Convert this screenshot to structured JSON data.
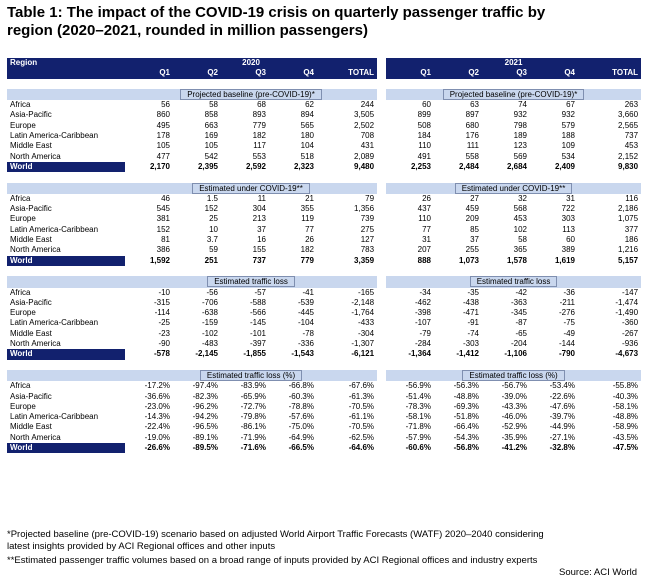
{
  "title_line1": "Table 1: The impact of the COVID-19 crisis on quarterly passenger traffic by",
  "title_line2": "region (2020–2021, rounded in million passengers)",
  "header": {
    "region_label": "Region",
    "year_left": "2020",
    "year_right": "2021",
    "columns": [
      "Q1",
      "Q2",
      "Q3",
      "Q4",
      "TOTAL"
    ]
  },
  "sections": [
    {
      "title": "Projected baseline (pre-COVID-19)*",
      "rows": [
        {
          "region": "Africa",
          "y2020": [
            "56",
            "58",
            "68",
            "62",
            "244"
          ],
          "y2021": [
            "60",
            "63",
            "74",
            "67",
            "263"
          ]
        },
        {
          "region": "Asia-Pacific",
          "y2020": [
            "860",
            "858",
            "893",
            "894",
            "3,505"
          ],
          "y2021": [
            "899",
            "897",
            "932",
            "932",
            "3,660"
          ]
        },
        {
          "region": "Europe",
          "y2020": [
            "495",
            "663",
            "779",
            "565",
            "2,502"
          ],
          "y2021": [
            "508",
            "680",
            "798",
            "579",
            "2,565"
          ]
        },
        {
          "region": "Latin America-Caribbean",
          "y2020": [
            "178",
            "169",
            "182",
            "180",
            "708"
          ],
          "y2021": [
            "184",
            "176",
            "189",
            "188",
            "737"
          ]
        },
        {
          "region": "Middle East",
          "y2020": [
            "105",
            "105",
            "117",
            "104",
            "431"
          ],
          "y2021": [
            "110",
            "111",
            "123",
            "109",
            "453"
          ]
        },
        {
          "region": "North America",
          "y2020": [
            "477",
            "542",
            "553",
            "518",
            "2,089"
          ],
          "y2021": [
            "491",
            "558",
            "569",
            "534",
            "2,152"
          ]
        }
      ],
      "world": {
        "region": "World",
        "y2020": [
          "2,170",
          "2,395",
          "2,592",
          "2,323",
          "9,480"
        ],
        "y2021": [
          "2,253",
          "2,484",
          "2,684",
          "2,409",
          "9,830"
        ]
      }
    },
    {
      "title": "Estimated under COVID-19**",
      "rows": [
        {
          "region": "Africa",
          "y2020": [
            "46",
            "1.5",
            "11",
            "21",
            "79"
          ],
          "y2021": [
            "26",
            "27",
            "32",
            "31",
            "116"
          ]
        },
        {
          "region": "Asia-Pacific",
          "y2020": [
            "545",
            "152",
            "304",
            "355",
            "1,356"
          ],
          "y2021": [
            "437",
            "459",
            "568",
            "722",
            "2,186"
          ]
        },
        {
          "region": "Europe",
          "y2020": [
            "381",
            "25",
            "213",
            "119",
            "739"
          ],
          "y2021": [
            "110",
            "209",
            "453",
            "303",
            "1,075"
          ]
        },
        {
          "region": "Latin America-Caribbean",
          "y2020": [
            "152",
            "10",
            "37",
            "77",
            "275"
          ],
          "y2021": [
            "77",
            "85",
            "102",
            "113",
            "377"
          ]
        },
        {
          "region": "Middle East",
          "y2020": [
            "81",
            "3.7",
            "16",
            "26",
            "127"
          ],
          "y2021": [
            "31",
            "37",
            "58",
            "60",
            "186"
          ]
        },
        {
          "region": "North America",
          "y2020": [
            "386",
            "59",
            "155",
            "182",
            "783"
          ],
          "y2021": [
            "207",
            "255",
            "365",
            "389",
            "1,216"
          ]
        }
      ],
      "world": {
        "region": "World",
        "y2020": [
          "1,592",
          "251",
          "737",
          "779",
          "3,359"
        ],
        "y2021": [
          "888",
          "1,073",
          "1,578",
          "1,619",
          "5,157"
        ]
      }
    },
    {
      "title": "Estimated traffic loss",
      "rows": [
        {
          "region": "Africa",
          "y2020": [
            "-10",
            "-56",
            "-57",
            "-41",
            "-165"
          ],
          "y2021": [
            "-34",
            "-35",
            "-42",
            "-36",
            "-147"
          ]
        },
        {
          "region": "Asia-Pacific",
          "y2020": [
            "-315",
            "-706",
            "-588",
            "-539",
            "-2,148"
          ],
          "y2021": [
            "-462",
            "-438",
            "-363",
            "-211",
            "-1,474"
          ]
        },
        {
          "region": "Europe",
          "y2020": [
            "-114",
            "-638",
            "-566",
            "-445",
            "-1,764"
          ],
          "y2021": [
            "-398",
            "-471",
            "-345",
            "-276",
            "-1,490"
          ]
        },
        {
          "region": "Latin America-Caribbean",
          "y2020": [
            "-25",
            "-159",
            "-145",
            "-104",
            "-433"
          ],
          "y2021": [
            "-107",
            "-91",
            "-87",
            "-75",
            "-360"
          ]
        },
        {
          "region": "Middle East",
          "y2020": [
            "-23",
            "-102",
            "-101",
            "-78",
            "-304"
          ],
          "y2021": [
            "-79",
            "-74",
            "-65",
            "-49",
            "-267"
          ]
        },
        {
          "region": "North America",
          "y2020": [
            "-90",
            "-483",
            "-397",
            "-336",
            "-1,307"
          ],
          "y2021": [
            "-284",
            "-303",
            "-204",
            "-144",
            "-936"
          ]
        }
      ],
      "world": {
        "region": "World",
        "y2020": [
          "-578",
          "-2,145",
          "-1,855",
          "-1,543",
          "-6,121"
        ],
        "y2021": [
          "-1,364",
          "-1,412",
          "-1,106",
          "-790",
          "-4,673"
        ]
      }
    },
    {
      "title": "Estimated traffic loss (%)",
      "rows": [
        {
          "region": "Africa",
          "y2020": [
            "-17.2%",
            "-97.4%",
            "-83.9%",
            "-66.8%",
            "-67.6%"
          ],
          "y2021": [
            "-56.9%",
            "-56.3%",
            "-56.7%",
            "-53.4%",
            "-55.8%"
          ]
        },
        {
          "region": "Asia-Pacific",
          "y2020": [
            "-36.6%",
            "-82.3%",
            "-65.9%",
            "-60.3%",
            "-61.3%"
          ],
          "y2021": [
            "-51.4%",
            "-48.8%",
            "-39.0%",
            "-22.6%",
            "-40.3%"
          ]
        },
        {
          "region": "Europe",
          "y2020": [
            "-23.0%",
            "-96.2%",
            "-72.7%",
            "-78.8%",
            "-70.5%"
          ],
          "y2021": [
            "-78.3%",
            "-69.3%",
            "-43.3%",
            "-47.6%",
            "-58.1%"
          ]
        },
        {
          "region": "Latin America-Caribbean",
          "y2020": [
            "-14.3%",
            "-94.2%",
            "-79.8%",
            "-57.6%",
            "-61.1%"
          ],
          "y2021": [
            "-58.1%",
            "-51.8%",
            "-46.0%",
            "-39.7%",
            "-48.8%"
          ]
        },
        {
          "region": "Middle East",
          "y2020": [
            "-22.4%",
            "-96.5%",
            "-86.1%",
            "-75.0%",
            "-70.5%"
          ],
          "y2021": [
            "-71.8%",
            "-66.4%",
            "-52.9%",
            "-44.9%",
            "-58.9%"
          ]
        },
        {
          "region": "North America",
          "y2020": [
            "-19.0%",
            "-89.1%",
            "-71.9%",
            "-64.9%",
            "-62.5%"
          ],
          "y2021": [
            "-57.9%",
            "-54.3%",
            "-35.9%",
            "-27.1%",
            "-43.5%"
          ]
        }
      ],
      "world": {
        "region": "World",
        "y2020": [
          "-26.6%",
          "-89.5%",
          "-71.6%",
          "-66.5%",
          "-64.6%"
        ],
        "y2021": [
          "-60.6%",
          "-56.8%",
          "-41.2%",
          "-32.8%",
          "-47.5%"
        ]
      }
    }
  ],
  "footnote1_line1": "*Projected baseline (pre-COVID-19) scenario based on adjusted World Airport Traffic Forecasts (WATF) 2020–2040 considering",
  "footnote1_line2": "latest insights provided by ACI Regional offices and other inputs",
  "footnote2": "**Estimated passenger traffic volumes based on a broad range of inputs provided by ACI Regional offices and industry experts",
  "source": "Source: ACI World",
  "colors": {
    "navy": "#12216e",
    "section_band": "#c9d7ee"
  }
}
